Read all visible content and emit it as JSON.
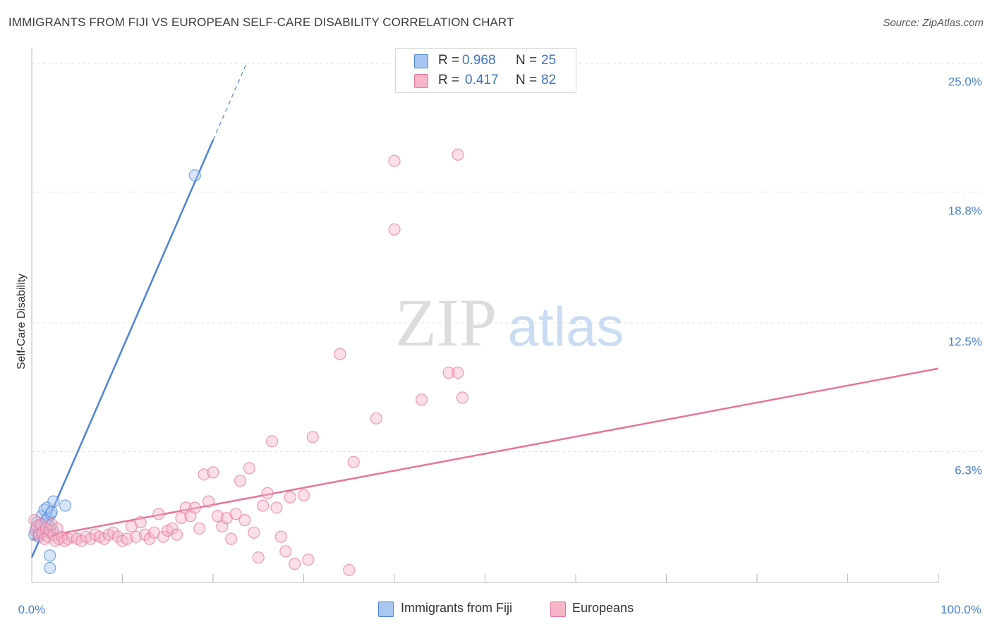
{
  "title": "IMMIGRANTS FROM FIJI VS EUROPEAN SELF-CARE DISABILITY CORRELATION CHART",
  "source": "Source: ZipAtlas.com",
  "watermark": {
    "zip": "ZIP",
    "atlas": "atlas"
  },
  "legend": {
    "rows": [
      {
        "r_label": "R =",
        "r_value": "0.968",
        "n_label": "N =",
        "n_value": "25",
        "color": "#a9c6f0"
      },
      {
        "r_label": "R =",
        "r_value": "0.417",
        "n_label": "N =",
        "n_value": "82",
        "color": "#f7b6c8"
      }
    ]
  },
  "bottom_legend": [
    {
      "label": "Immigrants from Fiji",
      "color": "#a9c6f0"
    },
    {
      "label": "Europeans",
      "color": "#f7b6c8"
    }
  ],
  "chart_data": {
    "type": "scatter",
    "title": "IMMIGRANTS FROM FIJI VS EUROPEAN SELF-CARE DISABILITY CORRELATION CHART",
    "xlabel": "",
    "ylabel": "Self-Care Disability",
    "xlim": [
      0,
      100
    ],
    "ylim": [
      0,
      25.6
    ],
    "x_tick_labels": [
      "0.0%",
      "100.0%"
    ],
    "y_ticks": [
      6.3,
      12.5,
      18.8,
      25.0
    ],
    "y_tick_labels": [
      "6.3%",
      "12.5%",
      "18.8%",
      "25.0%"
    ],
    "grid": true,
    "legend_position": "top-center",
    "series": [
      {
        "name": "Immigrants from Fiji",
        "color": "#4a84d8",
        "fill": "#a9c6f0",
        "trend": {
          "x0": 0,
          "y0": 1.2,
          "x1": 20.0,
          "y1": 21.3,
          "dash_to_x": 23.7,
          "dash_to_y": 25.0
        },
        "points": [
          [
            0.3,
            2.3
          ],
          [
            0.5,
            2.6
          ],
          [
            0.6,
            2.9
          ],
          [
            0.8,
            2.4
          ],
          [
            0.9,
            2.7
          ],
          [
            1.0,
            2.5
          ],
          [
            1.1,
            3.2
          ],
          [
            1.2,
            2.8
          ],
          [
            1.3,
            2.5
          ],
          [
            1.4,
            3.5
          ],
          [
            1.5,
            2.6
          ],
          [
            1.6,
            3.0
          ],
          [
            1.7,
            3.6
          ],
          [
            1.8,
            3.1
          ],
          [
            1.9,
            2.4
          ],
          [
            2.0,
            2.7
          ],
          [
            2.1,
            3.3
          ],
          [
            2.2,
            3.4
          ],
          [
            2.3,
            2.5
          ],
          [
            2.4,
            3.9
          ],
          [
            2.0,
            1.3
          ],
          [
            2.0,
            0.7
          ],
          [
            3.7,
            3.7
          ],
          [
            18.0,
            19.6
          ],
          [
            0.8,
            2.2
          ]
        ]
      },
      {
        "name": "Europeans",
        "color": "#e8739b",
        "fill": "#f7b6c8",
        "trend": {
          "x0": 0,
          "y0": 2.1,
          "x1": 100,
          "y1": 10.3
        },
        "points": [
          [
            0.3,
            3.0
          ],
          [
            0.4,
            2.5
          ],
          [
            0.6,
            2.7
          ],
          [
            0.8,
            2.3
          ],
          [
            1.0,
            2.8
          ],
          [
            1.2,
            2.4
          ],
          [
            1.4,
            2.1
          ],
          [
            1.6,
            2.6
          ],
          [
            1.8,
            2.2
          ],
          [
            2.0,
            2.5
          ],
          [
            2.2,
            2.8
          ],
          [
            2.4,
            2.3
          ],
          [
            2.6,
            2.0
          ],
          [
            2.8,
            2.6
          ],
          [
            3.0,
            2.1
          ],
          [
            3.3,
            2.2
          ],
          [
            3.6,
            2.0
          ],
          [
            4.0,
            2.1
          ],
          [
            4.5,
            2.2
          ],
          [
            5.0,
            2.1
          ],
          [
            5.5,
            2.0
          ],
          [
            6.0,
            2.2
          ],
          [
            6.5,
            2.1
          ],
          [
            7.0,
            2.3
          ],
          [
            7.5,
            2.2
          ],
          [
            8.0,
            2.1
          ],
          [
            8.5,
            2.3
          ],
          [
            9.0,
            2.4
          ],
          [
            9.5,
            2.2
          ],
          [
            10.0,
            2.0
          ],
          [
            10.5,
            2.1
          ],
          [
            11.0,
            2.7
          ],
          [
            11.5,
            2.2
          ],
          [
            12.0,
            2.9
          ],
          [
            12.5,
            2.3
          ],
          [
            13.0,
            2.1
          ],
          [
            13.5,
            2.4
          ],
          [
            14.0,
            3.3
          ],
          [
            14.5,
            2.2
          ],
          [
            15.0,
            2.5
          ],
          [
            15.5,
            2.6
          ],
          [
            16.0,
            2.3
          ],
          [
            16.5,
            3.1
          ],
          [
            17.0,
            3.6
          ],
          [
            17.5,
            3.2
          ],
          [
            18.0,
            3.6
          ],
          [
            18.5,
            2.6
          ],
          [
            19.0,
            5.2
          ],
          [
            19.5,
            3.9
          ],
          [
            20.0,
            5.3
          ],
          [
            20.5,
            3.2
          ],
          [
            21.0,
            2.7
          ],
          [
            21.5,
            3.1
          ],
          [
            22.0,
            2.1
          ],
          [
            22.5,
            3.3
          ],
          [
            23.0,
            4.9
          ],
          [
            23.5,
            3.0
          ],
          [
            24.0,
            5.5
          ],
          [
            24.5,
            2.4
          ],
          [
            25.0,
            1.2
          ],
          [
            25.5,
            3.7
          ],
          [
            26.0,
            4.3
          ],
          [
            26.5,
            6.8
          ],
          [
            27.0,
            3.6
          ],
          [
            27.5,
            2.2
          ],
          [
            28.0,
            1.5
          ],
          [
            28.5,
            4.1
          ],
          [
            29.0,
            0.9
          ],
          [
            30.0,
            4.2
          ],
          [
            30.5,
            1.1
          ],
          [
            31.0,
            7.0
          ],
          [
            34.0,
            11.0
          ],
          [
            35.0,
            0.6
          ],
          [
            35.5,
            5.8
          ],
          [
            38.0,
            7.9
          ],
          [
            40.0,
            20.3
          ],
          [
            40.0,
            17.0
          ],
          [
            43.0,
            8.8
          ],
          [
            46.0,
            10.1
          ],
          [
            47.0,
            20.6
          ],
          [
            47.0,
            10.1
          ],
          [
            47.5,
            8.9
          ]
        ]
      }
    ]
  }
}
